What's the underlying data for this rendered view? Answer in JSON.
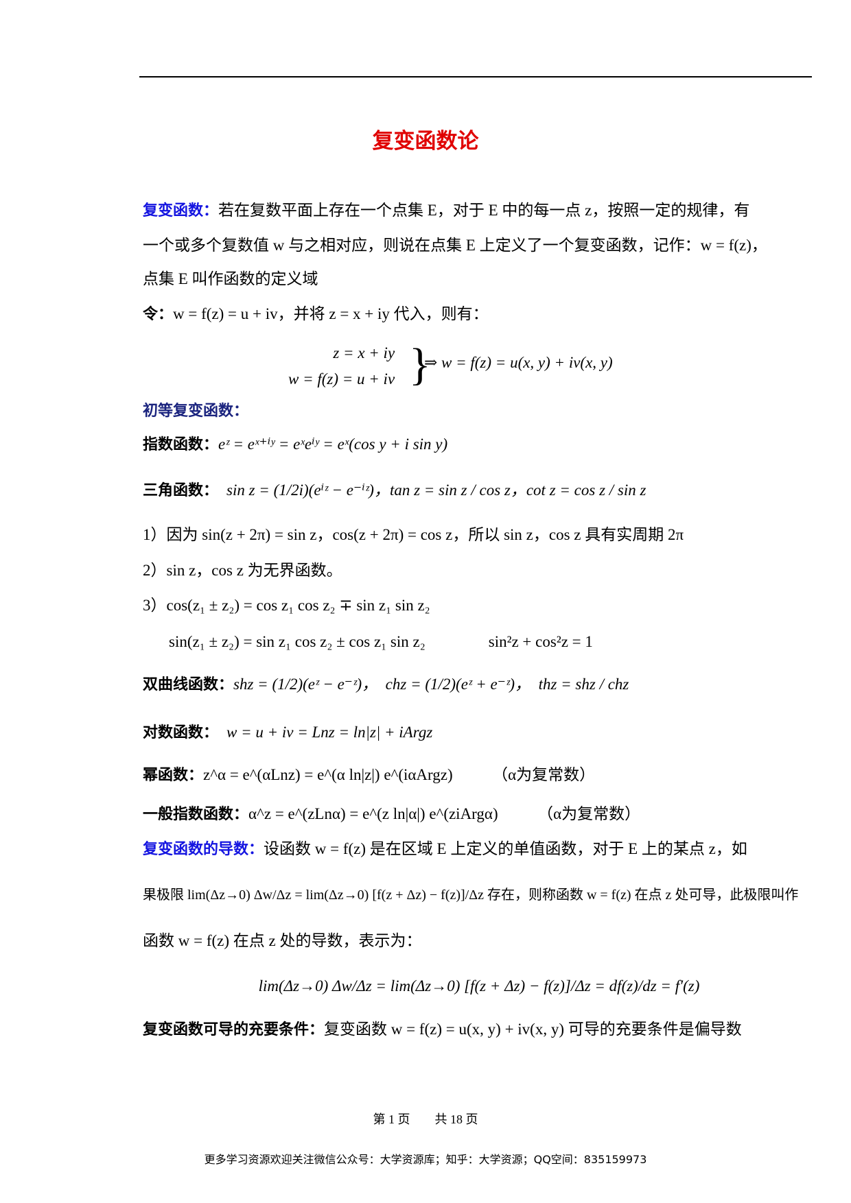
{
  "header": {
    "title": "复变函数论"
  },
  "lines": [
    {
      "label": "复变函数：",
      "text": "若在复数平面上存在一个点集 E，对于 E 中的每一点 z，按照一定的规律，有"
    },
    {
      "text": "一个或多个复数值 w 与之相对应，则说在点集 E 上定义了一个复变函数，记作：w = f(z)，"
    },
    {
      "text": "点集 E 叫作函数的定义域"
    },
    {
      "label": "令：",
      "text": "w = f(z) = u + iv，并将 z = x + iy 代入，则有："
    },
    {
      "system": [
        "z = x + iy",
        "w = f(z) = u + iv"
      ],
      "text": "⇒ w = f(z) = u(x, y) + iv(x, y)"
    },
    {
      "label": "初等复变函数："
    },
    {
      "label": "指数函数：",
      "text": "eᶻ = eˣ⁺ⁱʸ = eˣeⁱʸ = eˣ(cos y + i sin y)"
    },
    {
      "label": "三角函数：",
      "text": "sin z = (1/2i)(eⁱᶻ − e⁻ⁱᶻ)，tan z = sin z / cos z，cot z = cos z / sin z"
    },
    {
      "text": "1）因为 sin(z + 2π) = sin z，cos(z + 2π) = cos z，所以 sin z，cos z 具有实周期 2π"
    },
    {
      "text": "2）sin z，cos z 为无界函数。"
    },
    {
      "text": "3）cos(z₁ ± z₂) = cos z₁ cos z₂ ∓ sin z₁ sin z₂"
    },
    {
      "text": "sin(z₁ ± z₂) = sin z₁ cos z₂ ± cos z₁ sin z₂　　　　sin²z + cos²z = 1"
    },
    {
      "label": "双曲线函数：",
      "text": "shz = (1/2)(eᶻ − e⁻ᶻ)，　chz = (1/2)(eᶻ + e⁻ᶻ)，　thz = shz / chz"
    },
    {
      "label": "对数函数：",
      "text": "w = u + iv = Lnz = ln|z| + iArgz"
    },
    {
      "label": "幂函数：",
      "text": "z^α = e^(αLnz) = e^(α ln|z|) e^(iαArgz)　　　（α为复常数）"
    },
    {
      "label": "一般指数函数：",
      "text": "α^z = e^(zLnα) = e^(z ln|α|) e^(ziArgα)　　　（α为复常数）"
    },
    {
      "label": "复变函数的导数：",
      "text": "设函数 w = f(z) 是在区域 E 上定义的单值函数，对于 E 上的某点 z，如"
    },
    {
      "text": "果极限 lim(Δz→0) Δw/Δz = lim(Δz→0) [f(z + Δz) − f(z)]/Δz 存在，则称函数 w = f(z) 在点 z 处可导，此极限叫作"
    },
    {
      "text": "函数 w = f(z) 在点 z 处的导数，表示为："
    },
    {
      "text": "lim(Δz→0) Δw/Δz = lim(Δz→0) [f(z + Δz) − f(z)]/Δz = df(z)/dz = f′(z)"
    },
    {
      "label": "复变函数可导的充要条件：",
      "text": "复变函数 w = f(z) = u(x, y) + iv(x, y) 可导的充要条件是偏导数"
    }
  ],
  "footer": {
    "page": "第 1 页　　共 18 页",
    "note": "更多学习资源欢迎关注微信公众号：大学资源库；知乎：大学资源；QQ空间：835159973"
  }
}
